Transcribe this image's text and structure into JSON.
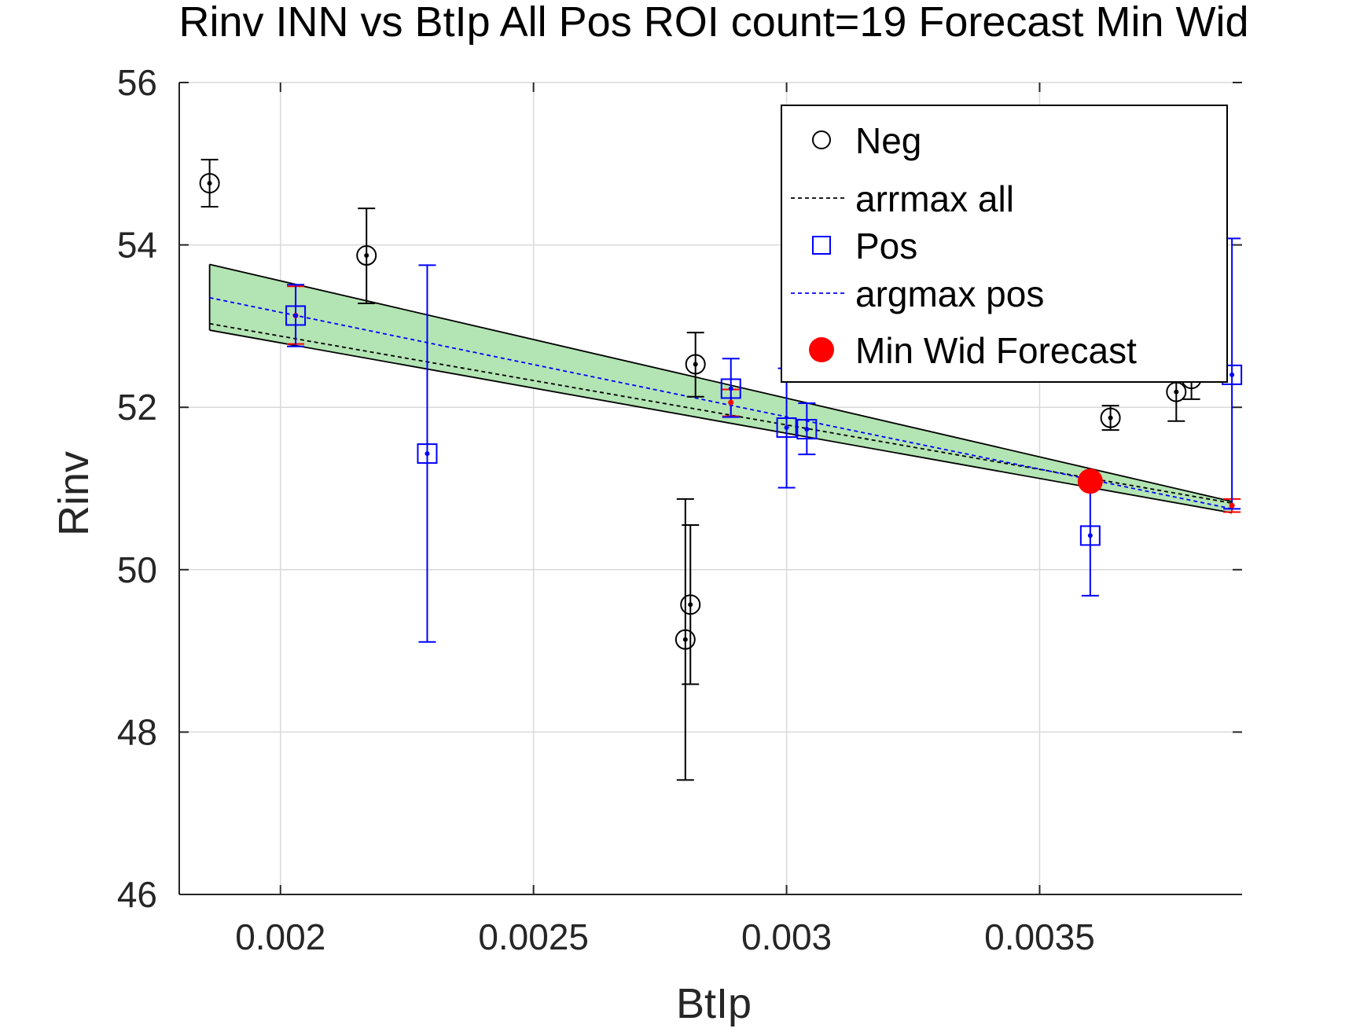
{
  "chart_data": {
    "type": "scatter",
    "title": "Rinv INN vs BtIp All Pos ROI count=19 Forecast Min Wid",
    "xlabel": "BtIp",
    "ylabel": "Rinv",
    "xlim": [
      0.0018,
      0.0039
    ],
    "ylim": [
      46,
      56
    ],
    "xticks": [
      0.002,
      0.0025,
      0.003,
      0.0035
    ],
    "xtick_labels": [
      "0.002",
      "0.0025",
      "0.003",
      "0.0035"
    ],
    "yticks": [
      46,
      48,
      50,
      52,
      54,
      56
    ],
    "ytick_labels": [
      "46",
      "48",
      "50",
      "52",
      "54",
      "56"
    ],
    "grid": true,
    "legend_position": "top-right",
    "colors": {
      "neg": "#000000",
      "pos": "#0000ff",
      "forecast": "#ff0000",
      "band_fill": "#b3e4b3",
      "band_edge": "#000000",
      "grid": "#d9d9d9"
    },
    "series": [
      {
        "name": "Neg",
        "marker": "circle",
        "color": "#000000",
        "points": [
          {
            "x": 0.00186,
            "y": 54.76,
            "lo": 54.47,
            "hi": 55.05
          },
          {
            "x": 0.00217,
            "y": 53.87,
            "lo": 53.28,
            "hi": 54.45
          },
          {
            "x": 0.0028,
            "y": 49.14,
            "lo": 47.41,
            "hi": 50.87
          },
          {
            "x": 0.00281,
            "y": 49.57,
            "lo": 48.59,
            "hi": 50.55
          },
          {
            "x": 0.00282,
            "y": 52.53,
            "lo": 52.13,
            "hi": 52.92
          },
          {
            "x": 0.00364,
            "y": 51.87,
            "lo": 51.72,
            "hi": 52.02
          },
          {
            "x": 0.00377,
            "y": 52.19,
            "lo": 51.83,
            "hi": 52.55
          },
          {
            "x": 0.0038,
            "y": 52.35,
            "lo": 52.1,
            "hi": 52.6
          }
        ]
      },
      {
        "name": "Pos",
        "marker": "square",
        "color": "#0000ff",
        "points": [
          {
            "x": 0.00203,
            "y": 53.13,
            "lo": 52.75,
            "hi": 53.51
          },
          {
            "x": 0.00229,
            "y": 51.43,
            "lo": 49.11,
            "hi": 53.75
          },
          {
            "x": 0.00289,
            "y": 52.23,
            "lo": 51.88,
            "hi": 52.6
          },
          {
            "x": 0.003,
            "y": 51.75,
            "lo": 51.01,
            "hi": 52.48
          },
          {
            "x": 0.00304,
            "y": 51.73,
            "lo": 51.42,
            "hi": 52.05
          },
          {
            "x": 0.0036,
            "y": 50.42,
            "lo": 49.68,
            "hi": 51.15
          },
          {
            "x": 0.00388,
            "y": 52.4,
            "lo": 50.75,
            "hi": 54.08
          }
        ]
      },
      {
        "name": "arrmax all",
        "style": "dashed",
        "color": "#000000",
        "points": [
          {
            "x": 0.00186,
            "y": 53.03
          },
          {
            "x": 0.00388,
            "y": 50.82
          }
        ]
      },
      {
        "name": "argmax pos",
        "style": "dashed",
        "color": "#0000ff",
        "points": [
          {
            "x": 0.00186,
            "y": 53.35
          },
          {
            "x": 0.00388,
            "y": 50.75
          }
        ]
      },
      {
        "name": "Min Wid Forecast",
        "marker": "filled-circle",
        "color": "#ff0000",
        "points": [
          {
            "x": 0.0036,
            "y": 51.09
          }
        ]
      }
    ],
    "confidence_band": {
      "color": "#b3e4b3",
      "upper": [
        {
          "x": 0.00186,
          "y": 53.76
        },
        {
          "x": 0.00388,
          "y": 50.84
        }
      ],
      "lower": [
        {
          "x": 0.00186,
          "y": 52.95
        },
        {
          "x": 0.00388,
          "y": 50.7
        }
      ]
    },
    "forecast_markers": [
      {
        "x": 0.00203,
        "y": 53.13,
        "lo": 52.78,
        "hi": 53.49
      },
      {
        "x": 0.00289,
        "y": 52.06,
        "lo": 51.89,
        "hi": 52.22
      },
      {
        "x": 0.00388,
        "y": 50.79,
        "lo": 50.71,
        "hi": 50.87
      }
    ],
    "legend": [
      {
        "label": "Neg",
        "symbol": "circle",
        "color": "#000000"
      },
      {
        "label": "arrmax all",
        "symbol": "dashed-line",
        "color": "#000000"
      },
      {
        "label": "Pos",
        "symbol": "square",
        "color": "#0000ff"
      },
      {
        "label": "argmax pos",
        "symbol": "dashed-line",
        "color": "#0000ff"
      },
      {
        "label": "Min Wid Forecast",
        "symbol": "filled-circle",
        "color": "#ff0000"
      }
    ]
  }
}
